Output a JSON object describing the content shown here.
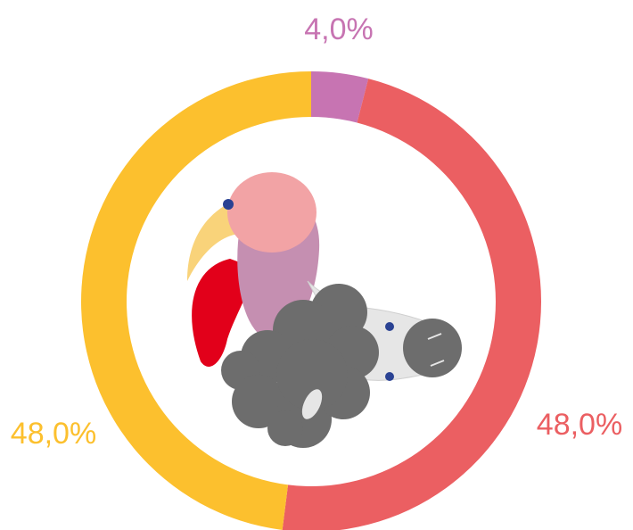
{
  "chart_data": {
    "type": "donut",
    "categories": [
      null,
      null,
      null
    ],
    "values": [
      4,
      48,
      48
    ],
    "value_labels": [
      "4,0%",
      "48,0%",
      "48,0%"
    ],
    "colors": [
      "#c774b2",
      "#eb5f62",
      "#fcc02e"
    ]
  }
}
